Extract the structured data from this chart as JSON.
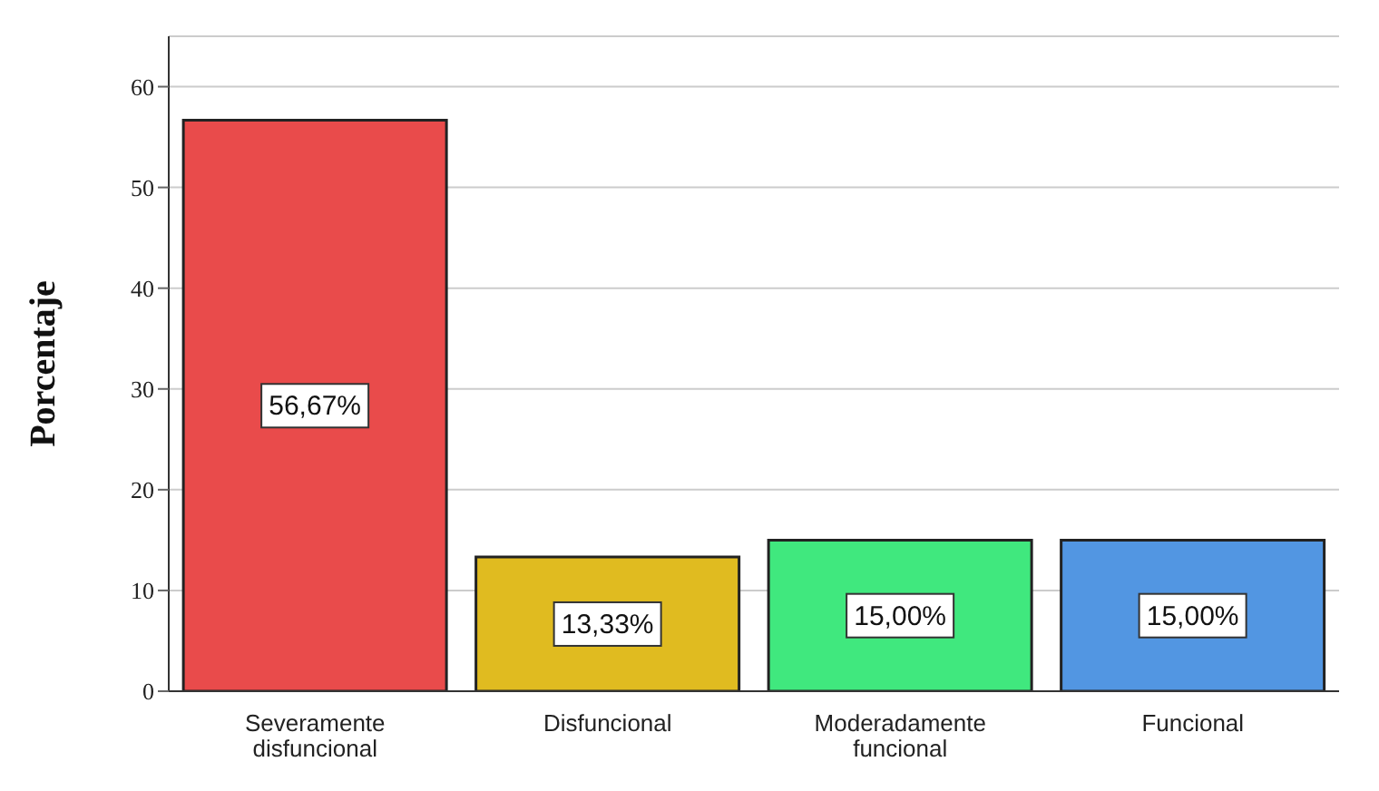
{
  "chart_data": {
    "type": "bar",
    "ylabel": "Porcentaje",
    "categories": [
      "Severamente disfuncional",
      "Disfuncional",
      "Moderadamente funcional",
      "Funcional"
    ],
    "values": [
      56.67,
      13.33,
      15.0,
      15.0
    ],
    "colors": [
      "#e94b4b",
      "#e0bb20",
      "#40e87e",
      "#5296e2"
    ],
    "value_labels": [
      "56,67%",
      "13,33%",
      "15,00%",
      "15,00%"
    ],
    "ylim": [
      0,
      65
    ],
    "yticks": [
      0,
      10,
      20,
      30,
      40,
      50,
      60
    ],
    "grid": "y"
  }
}
